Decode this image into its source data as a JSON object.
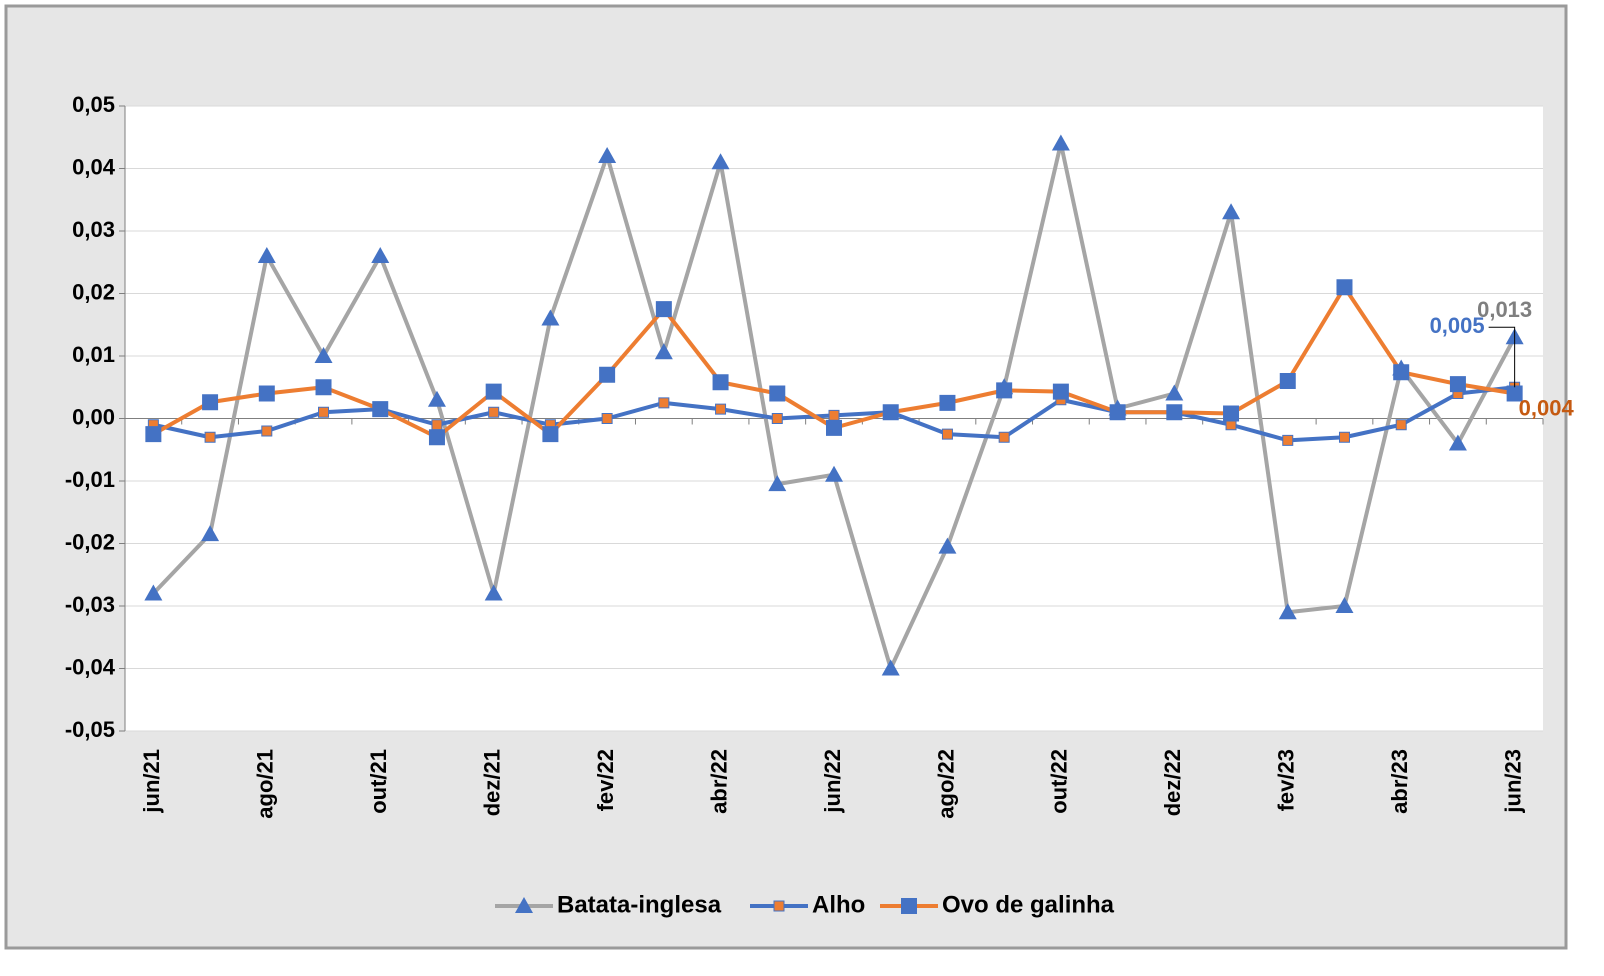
{
  "chart_data": {
    "type": "line",
    "categories": [
      "jun/21",
      null,
      "ago/21",
      null,
      "out/21",
      null,
      "dez/21",
      null,
      "fev/22",
      null,
      "abr/22",
      null,
      "jun/22",
      null,
      "ago/22",
      null,
      "out/22",
      null,
      "dez/22",
      null,
      "fev/23",
      null,
      "abr/23",
      null,
      "jun/23"
    ],
    "ylim": [
      -0.05,
      0.05
    ],
    "yticks": [
      {
        "value": -0.05,
        "label": "-0,05"
      },
      {
        "value": -0.04,
        "label": "-0,04"
      },
      {
        "value": -0.03,
        "label": "-0,03"
      },
      {
        "value": -0.02,
        "label": "-0,02"
      },
      {
        "value": -0.01,
        "label": "-0,01"
      },
      {
        "value": 0,
        "label": "0,00"
      },
      {
        "value": 0.01,
        "label": "0,01"
      },
      {
        "value": 0.02,
        "label": "0,02"
      },
      {
        "value": 0.03,
        "label": "0,03"
      },
      {
        "value": 0.04,
        "label": "0,04"
      },
      {
        "value": 0.05,
        "label": "0,05"
      }
    ],
    "grid": true,
    "legend": "bottom",
    "series": [
      {
        "name": "Batata-inglesa",
        "color": "#a5a5a5",
        "marker": "triangle",
        "marker_color": "#4472c4",
        "values": [
          -0.028,
          -0.0185,
          0.026,
          0.01,
          0.026,
          0.003,
          -0.028,
          0.016,
          0.042,
          0.0106,
          0.041,
          -0.0105,
          -0.009,
          -0.04,
          -0.0205,
          0.005,
          0.044,
          0.0016,
          0.004,
          0.033,
          -0.031,
          -0.03,
          0.008,
          -0.004,
          0.013
        ],
        "value_labels": [
          null,
          null,
          null,
          null,
          null,
          null,
          null,
          null,
          null,
          null,
          null,
          null,
          null,
          null,
          null,
          null,
          null,
          null,
          null,
          null,
          null,
          null,
          null,
          null,
          "0,013"
        ]
      },
      {
        "name": "Alho",
        "color": "#4472c4",
        "marker": "small-square",
        "marker_color": "#ed7d31",
        "values": [
          -0.001,
          -0.003,
          -0.002,
          0.001,
          0.0015,
          -0.001,
          0.001,
          -0.001,
          0.0,
          0.0025,
          0.0015,
          0.0,
          0.0005,
          0.001,
          -0.0025,
          -0.003,
          0.003,
          0.001,
          0.001,
          -0.001,
          -0.0035,
          -0.003,
          -0.001,
          0.004,
          0.005
        ],
        "value_labels": [
          null,
          null,
          null,
          null,
          null,
          null,
          null,
          null,
          null,
          null,
          null,
          null,
          null,
          null,
          null,
          null,
          null,
          null,
          null,
          null,
          null,
          null,
          null,
          null,
          "0,005"
        ]
      },
      {
        "name": "Ovo de galinha",
        "color": "#ed7d31",
        "marker": "square",
        "marker_color": "#4472c4",
        "values": [
          -0.0025,
          0.0026,
          0.004,
          0.005,
          0.0015,
          -0.003,
          0.0043,
          -0.0025,
          0.007,
          0.0175,
          0.0058,
          0.004,
          -0.0015,
          0.001,
          0.0025,
          0.0045,
          0.0043,
          0.001,
          0.001,
          0.0008,
          0.006,
          0.021,
          0.0074,
          0.0055,
          0.004
        ],
        "value_labels": [
          null,
          null,
          null,
          null,
          null,
          null,
          null,
          null,
          null,
          null,
          null,
          null,
          null,
          null,
          null,
          null,
          null,
          null,
          null,
          null,
          null,
          null,
          null,
          null,
          "0,004"
        ]
      }
    ]
  }
}
